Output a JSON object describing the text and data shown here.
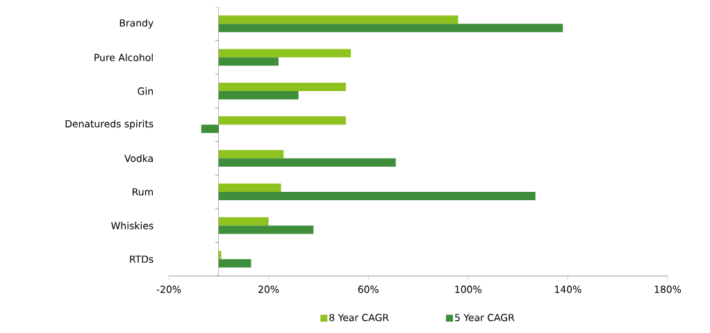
{
  "chart_data": {
    "type": "bar",
    "orientation": "horizontal",
    "categories": [
      "Brandy",
      "Pure Alcohol",
      "Gin",
      "Denatureds spirits",
      "Vodka",
      "Rum",
      "Whiskies",
      "RTDs"
    ],
    "series": [
      {
        "name": "8 Year CAGR",
        "color": "#8dc21f",
        "values": [
          96,
          53,
          51,
          51,
          26,
          25,
          20,
          1
        ]
      },
      {
        "name": "5 Year CAGR",
        "color": "#3e8e3b",
        "values": [
          138,
          24,
          32,
          -7,
          71,
          127,
          38,
          13
        ]
      }
    ],
    "xlim": [
      -20,
      180
    ],
    "xticks": [
      {
        "value": -20,
        "label": "-20%"
      },
      {
        "value": 20,
        "label": "20%"
      },
      {
        "value": 60,
        "label": "60%"
      },
      {
        "value": 100,
        "label": "100%"
      },
      {
        "value": 140,
        "label": "140%"
      },
      {
        "value": 180,
        "label": "180%"
      }
    ],
    "legend": "bottom"
  }
}
